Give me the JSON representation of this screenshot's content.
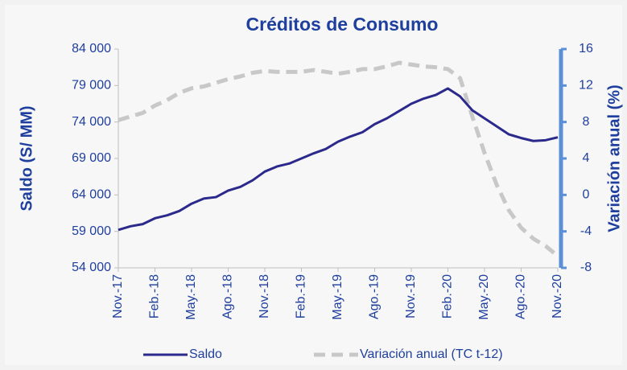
{
  "chart_data": {
    "type": "line",
    "title": "Créditos de Consumo",
    "y_label": "Saldo (S/ MM)",
    "y2_label": "Variación anual (%)",
    "categories": [
      "Nov.-17",
      null,
      null,
      "Feb.-18",
      null,
      null,
      "May.-18",
      null,
      null,
      "Ago.-18",
      null,
      null,
      "Nov.-18",
      null,
      null,
      "Feb.-19",
      null,
      null,
      "May.-19",
      null,
      null,
      "Ago.-19",
      null,
      null,
      "Nov.-19",
      null,
      null,
      "Feb.-20",
      null,
      null,
      "May.-20",
      null,
      null,
      "Ago.-20",
      null,
      null,
      "Nov.-20"
    ],
    "series": [
      {
        "name": "Saldo",
        "color": "#2b2a8c",
        "axis": "y",
        "values": [
          59200,
          59700,
          60000,
          60800,
          61200,
          61800,
          62800,
          63500,
          63700,
          64600,
          65100,
          66000,
          67200,
          67900,
          68300,
          69000,
          69700,
          70300,
          71300,
          72000,
          72600,
          73700,
          74500,
          75500,
          76500,
          77200,
          77700,
          78600,
          77500,
          75600,
          74500,
          73400,
          72300,
          71800,
          71400,
          71500,
          71900
        ]
      },
      {
        "name": "Variación anual (TC t-12)",
        "color": "#c8c8c8",
        "axis": "y2",
        "dashed": true,
        "values": [
          8.2,
          8.6,
          9.0,
          9.8,
          10.4,
          11.2,
          11.7,
          11.9,
          12.3,
          12.7,
          13.0,
          13.4,
          13.6,
          13.5,
          13.5,
          13.5,
          13.7,
          13.5,
          13.3,
          13.5,
          13.8,
          13.8,
          14.1,
          14.5,
          14.3,
          14.1,
          14.0,
          13.8,
          12.8,
          8.6,
          4.6,
          1.1,
          -1.7,
          -3.6,
          -4.8,
          -5.6,
          -6.7
        ]
      }
    ],
    "ylim": [
      54000,
      84000
    ],
    "yticks": [
      {
        "value": 54000,
        "label": "54 000"
      },
      {
        "value": 59000,
        "label": "59 000"
      },
      {
        "value": 64000,
        "label": "64 000"
      },
      {
        "value": 69000,
        "label": "69 000"
      },
      {
        "value": 74000,
        "label": "74 000"
      },
      {
        "value": 79000,
        "label": "79 000"
      },
      {
        "value": 84000,
        "label": "84 000"
      }
    ],
    "y2lim": [
      -8,
      16
    ],
    "y2ticks": [
      -8,
      -4,
      0,
      4,
      8,
      12,
      16
    ],
    "legend": "bottom"
  }
}
